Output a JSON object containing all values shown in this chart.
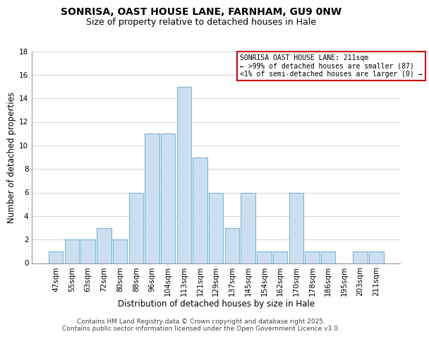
{
  "title": "SONRISA, OAST HOUSE LANE, FARNHAM, GU9 0NW",
  "subtitle": "Size of property relative to detached houses in Hale",
  "xlabel": "Distribution of detached houses by size in Hale",
  "ylabel": "Number of detached properties",
  "bar_labels": [
    "47sqm",
    "55sqm",
    "63sqm",
    "72sqm",
    "80sqm",
    "88sqm",
    "96sqm",
    "104sqm",
    "113sqm",
    "121sqm",
    "129sqm",
    "137sqm",
    "145sqm",
    "154sqm",
    "162sqm",
    "170sqm",
    "178sqm",
    "186sqm",
    "195sqm",
    "203sqm",
    "211sqm"
  ],
  "bar_values": [
    1,
    2,
    2,
    3,
    2,
    6,
    11,
    11,
    15,
    9,
    6,
    3,
    6,
    1,
    1,
    6,
    1,
    1,
    0,
    1,
    1
  ],
  "bar_color": "#ccdff0",
  "bar_edge_color": "#7ab8d9",
  "background_color": "#ffffff",
  "grid_color": "#cccccc",
  "ylim": [
    0,
    18
  ],
  "yticks": [
    0,
    2,
    4,
    6,
    8,
    10,
    12,
    14,
    16,
    18
  ],
  "annotation_title": "SONRISA OAST HOUSE LANE: 211sqm",
  "annotation_line1": "← >99% of detached houses are smaller (87)",
  "annotation_line2": "<1% of semi-detached houses are larger (0) →",
  "annotation_box_color": "#ffffff",
  "annotation_box_edge": "#cc0000",
  "footer_line1": "Contains HM Land Registry data © Crown copyright and database right 2025.",
  "footer_line2": "Contains public sector information licensed under the Open Government Licence v3.0.",
  "title_fontsize": 10,
  "subtitle_fontsize": 9,
  "axis_label_fontsize": 8.5,
  "tick_fontsize": 7.5,
  "footer_fontsize": 6.5
}
